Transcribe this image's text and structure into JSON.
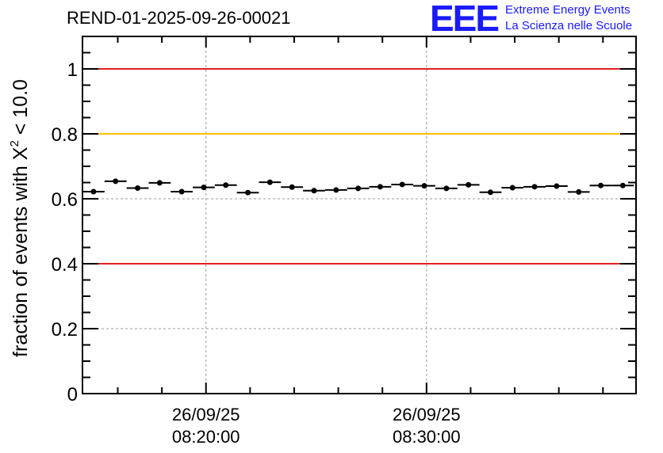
{
  "header": {
    "run_title": "REND-01-2025-09-26-00021",
    "logo": {
      "text": "EEE",
      "line1": "Extreme Energy Events",
      "line2": "La Scienza nelle Scuole",
      "color": "#1a1aff"
    }
  },
  "chart_data": {
    "type": "scatter",
    "title": "REND-01-2025-09-26-00021",
    "ylabel_prefix": "fraction of events with ",
    "ylabel_symbol": "X",
    "ylabel_sup": "2",
    "ylabel_suffix": " < 10.0",
    "xlabel": "",
    "ylim": [
      0,
      1.1
    ],
    "xlim_minutes": [
      14.4,
      39.5
    ],
    "ytick_labels": [
      {
        "value": 0,
        "label": "0"
      },
      {
        "value": 0.2,
        "label": "0.2"
      },
      {
        "value": 0.4,
        "label": "0.4"
      },
      {
        "value": 0.6,
        "label": "0.6"
      },
      {
        "value": 0.8,
        "label": "0.8"
      },
      {
        "value": 1,
        "label": "1"
      }
    ],
    "xtick_labels": [
      {
        "minute": 20,
        "date": "26/09/25",
        "time": "08:20:00"
      },
      {
        "minute": 30,
        "date": "26/09/25",
        "time": "08:30:00"
      }
    ],
    "reference_lines": [
      {
        "y": 1.0,
        "color": "#e02020"
      },
      {
        "y": 0.8,
        "color": "#ffc000"
      },
      {
        "y": 0.4,
        "color": "#e02020"
      }
    ],
    "bin_width_minutes": 1,
    "points": [
      {
        "x": 14.9,
        "y": 0.622
      },
      {
        "x": 15.9,
        "y": 0.654
      },
      {
        "x": 16.9,
        "y": 0.633
      },
      {
        "x": 17.9,
        "y": 0.649
      },
      {
        "x": 18.9,
        "y": 0.622
      },
      {
        "x": 19.9,
        "y": 0.635
      },
      {
        "x": 20.9,
        "y": 0.642
      },
      {
        "x": 21.9,
        "y": 0.619
      },
      {
        "x": 22.9,
        "y": 0.651
      },
      {
        "x": 23.9,
        "y": 0.636
      },
      {
        "x": 24.9,
        "y": 0.625
      },
      {
        "x": 25.9,
        "y": 0.627
      },
      {
        "x": 26.9,
        "y": 0.632
      },
      {
        "x": 27.9,
        "y": 0.637
      },
      {
        "x": 28.9,
        "y": 0.644
      },
      {
        "x": 29.9,
        "y": 0.64
      },
      {
        "x": 30.9,
        "y": 0.632
      },
      {
        "x": 31.9,
        "y": 0.643
      },
      {
        "x": 32.9,
        "y": 0.62
      },
      {
        "x": 33.9,
        "y": 0.634
      },
      {
        "x": 34.9,
        "y": 0.637
      },
      {
        "x": 35.9,
        "y": 0.639
      },
      {
        "x": 36.9,
        "y": 0.621
      },
      {
        "x": 37.9,
        "y": 0.641
      },
      {
        "x": 38.9,
        "y": 0.641
      }
    ],
    "grid": true
  }
}
